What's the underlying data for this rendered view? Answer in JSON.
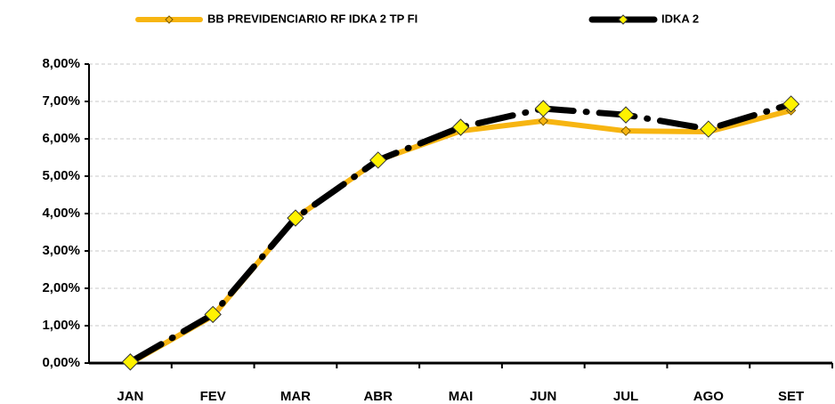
{
  "chart_data": {
    "type": "line",
    "categories": [
      "JAN",
      "FEV",
      "MAR",
      "ABR",
      "MAI",
      "JUN",
      "JUL",
      "AGO",
      "SET"
    ],
    "series": [
      {
        "name": "BB PREVIDENCIARIO RF IDKA 2 TP FI",
        "color": "#F7B511",
        "values": [
          0,
          1.26,
          3.88,
          5.43,
          6.21,
          6.48,
          6.21,
          6.19,
          6.76
        ]
      },
      {
        "name": "IDKA 2",
        "color": "#000000",
        "values": [
          0.03,
          1.3,
          3.88,
          5.43,
          6.31,
          6.81,
          6.64,
          6.26,
          6.93
        ]
      }
    ],
    "ylim": [
      0,
      8
    ],
    "yticks": [
      {
        "value": 0,
        "label": "0,00%"
      },
      {
        "value": 1,
        "label": "1,00%"
      },
      {
        "value": 2,
        "label": "2,00%"
      },
      {
        "value": 3,
        "label": "3,00%"
      },
      {
        "value": 4,
        "label": "4,00%"
      },
      {
        "value": 5,
        "label": "5,00%"
      },
      {
        "value": 6,
        "label": "6,00%"
      },
      {
        "value": 7,
        "label": "7,00%"
      },
      {
        "value": 8,
        "label": "8,00%"
      }
    ],
    "grid": true,
    "legend": "top"
  }
}
